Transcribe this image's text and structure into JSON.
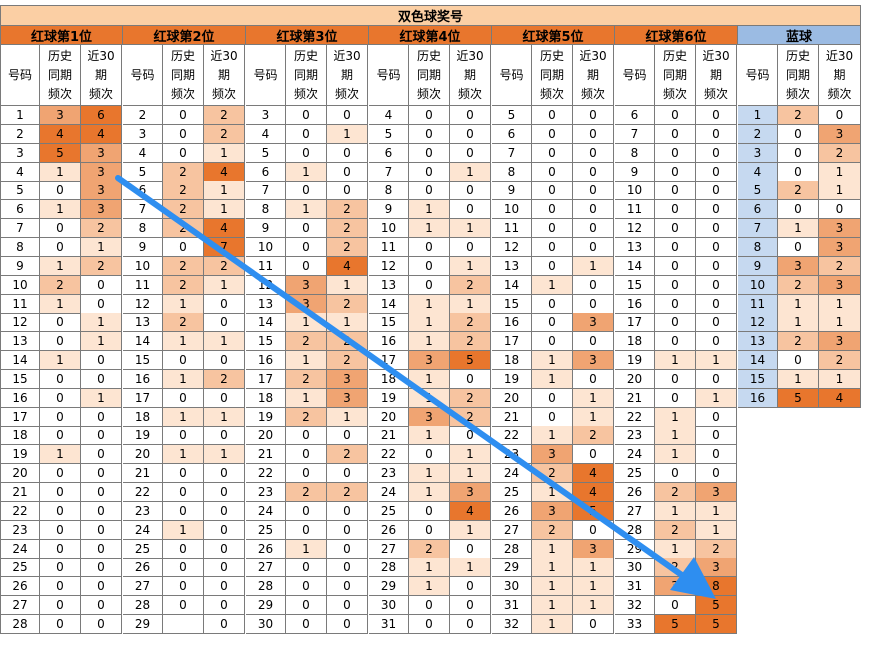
{
  "title": "双色球奖号",
  "groups": [
    {
      "label": "红球第1位",
      "blue": false
    },
    {
      "label": "红球第2位",
      "blue": false
    },
    {
      "label": "红球第3位",
      "blue": false
    },
    {
      "label": "红球第4位",
      "blue": false
    },
    {
      "label": "红球第5位",
      "blue": false
    },
    {
      "label": "红球第6位",
      "blue": false
    },
    {
      "label": "蓝球",
      "blue": true
    }
  ],
  "subheaders": [
    "号码",
    "历史\n同期\n频次",
    "近30\n期\n频次"
  ],
  "colors": {
    "title_bg": "#fbcfa4",
    "group_bg": "#e8762d",
    "blue_group_bg": "#9bbbe3",
    "blue_num_bg": "#c6d9f0",
    "heat_1": "#fde5d2",
    "heat_2": "#f7c4a0",
    "heat_3": "#f0a472",
    "heat_4": "#e8762d",
    "arrow": "#2e8ef0",
    "grid_line": "#7a7a7a"
  },
  "tables": [
    {
      "rows": [
        [
          1,
          3,
          6
        ],
        [
          2,
          4,
          4
        ],
        [
          3,
          5,
          3
        ],
        [
          4,
          1,
          3
        ],
        [
          5,
          0,
          3
        ],
        [
          6,
          1,
          3
        ],
        [
          7,
          0,
          2
        ],
        [
          8,
          0,
          1
        ],
        [
          9,
          1,
          2
        ],
        [
          10,
          2,
          0
        ],
        [
          11,
          1,
          0
        ],
        [
          12,
          0,
          1
        ],
        [
          13,
          0,
          1
        ],
        [
          14,
          1,
          0
        ],
        [
          15,
          0,
          0
        ],
        [
          16,
          0,
          1
        ],
        [
          17,
          0,
          0
        ],
        [
          18,
          0,
          0
        ],
        [
          19,
          1,
          0
        ],
        [
          20,
          0,
          0
        ],
        [
          21,
          0,
          0
        ],
        [
          22,
          0,
          0
        ],
        [
          23,
          0,
          0
        ],
        [
          24,
          0,
          0
        ],
        [
          25,
          0,
          0
        ],
        [
          26,
          0,
          0
        ],
        [
          27,
          0,
          0
        ],
        [
          28,
          0,
          0
        ]
      ]
    },
    {
      "rows": [
        [
          2,
          0,
          2
        ],
        [
          3,
          0,
          2
        ],
        [
          4,
          0,
          1
        ],
        [
          5,
          2,
          4
        ],
        [
          6,
          2,
          1
        ],
        [
          7,
          2,
          1
        ],
        [
          8,
          2,
          4
        ],
        [
          9,
          0,
          7
        ],
        [
          10,
          2,
          2
        ],
        [
          11,
          2,
          1
        ],
        [
          12,
          1,
          0
        ],
        [
          13,
          2,
          0
        ],
        [
          14,
          1,
          1
        ],
        [
          15,
          0,
          0
        ],
        [
          16,
          1,
          2
        ],
        [
          17,
          0,
          0
        ],
        [
          18,
          1,
          1
        ],
        [
          19,
          0,
          0
        ],
        [
          20,
          1,
          1
        ],
        [
          21,
          0,
          0
        ],
        [
          22,
          0,
          0
        ],
        [
          23,
          0,
          0
        ],
        [
          24,
          1,
          0
        ],
        [
          25,
          0,
          0
        ],
        [
          26,
          0,
          0
        ],
        [
          27,
          0,
          0
        ],
        [
          28,
          0,
          0
        ],
        [
          29,
          "",
          0
        ]
      ]
    },
    {
      "rows": [
        [
          3,
          0,
          0
        ],
        [
          4,
          0,
          1
        ],
        [
          5,
          0,
          0
        ],
        [
          6,
          1,
          0
        ],
        [
          7,
          0,
          0
        ],
        [
          8,
          1,
          2
        ],
        [
          9,
          0,
          2
        ],
        [
          10,
          0,
          2
        ],
        [
          11,
          0,
          4
        ],
        [
          12,
          3,
          1
        ],
        [
          13,
          3,
          2
        ],
        [
          14,
          1,
          1
        ],
        [
          15,
          2,
          2
        ],
        [
          16,
          1,
          2
        ],
        [
          17,
          2,
          3
        ],
        [
          18,
          1,
          3
        ],
        [
          19,
          2,
          1
        ],
        [
          20,
          0,
          0
        ],
        [
          21,
          0,
          2
        ],
        [
          22,
          0,
          0
        ],
        [
          23,
          2,
          2
        ],
        [
          24,
          0,
          0
        ],
        [
          25,
          0,
          0
        ],
        [
          26,
          1,
          0
        ],
        [
          27,
          0,
          0
        ],
        [
          28,
          0,
          0
        ],
        [
          29,
          0,
          0
        ],
        [
          30,
          0,
          0
        ]
      ]
    },
    {
      "rows": [
        [
          4,
          0,
          0
        ],
        [
          5,
          0,
          0
        ],
        [
          6,
          0,
          0
        ],
        [
          7,
          0,
          1
        ],
        [
          8,
          0,
          0
        ],
        [
          9,
          1,
          0
        ],
        [
          10,
          1,
          1
        ],
        [
          11,
          0,
          0
        ],
        [
          12,
          0,
          1
        ],
        [
          13,
          0,
          2
        ],
        [
          14,
          1,
          1
        ],
        [
          15,
          1,
          2
        ],
        [
          16,
          1,
          2
        ],
        [
          17,
          3,
          5
        ],
        [
          18,
          1,
          0
        ],
        [
          19,
          1,
          2
        ],
        [
          20,
          3,
          2
        ],
        [
          21,
          1,
          0
        ],
        [
          22,
          0,
          1
        ],
        [
          23,
          1,
          1
        ],
        [
          24,
          1,
          3
        ],
        [
          25,
          0,
          4
        ],
        [
          26,
          0,
          1
        ],
        [
          27,
          2,
          0
        ],
        [
          28,
          1,
          1
        ],
        [
          29,
          1,
          0
        ],
        [
          30,
          0,
          0
        ],
        [
          31,
          0,
          0
        ]
      ]
    },
    {
      "rows": [
        [
          5,
          0,
          0
        ],
        [
          6,
          0,
          0
        ],
        [
          7,
          0,
          0
        ],
        [
          8,
          0,
          0
        ],
        [
          9,
          0,
          0
        ],
        [
          10,
          0,
          0
        ],
        [
          11,
          0,
          0
        ],
        [
          12,
          0,
          0
        ],
        [
          13,
          0,
          1
        ],
        [
          14,
          1,
          0
        ],
        [
          15,
          0,
          0
        ],
        [
          16,
          0,
          3
        ],
        [
          17,
          0,
          0
        ],
        [
          18,
          1,
          3
        ],
        [
          19,
          1,
          0
        ],
        [
          20,
          0,
          1
        ],
        [
          21,
          0,
          1
        ],
        [
          22,
          1,
          2
        ],
        [
          23,
          3,
          0
        ],
        [
          24,
          2,
          4
        ],
        [
          25,
          1,
          4
        ],
        [
          26,
          3,
          5
        ],
        [
          27,
          2,
          0
        ],
        [
          28,
          1,
          3
        ],
        [
          29,
          1,
          1
        ],
        [
          30,
          1,
          1
        ],
        [
          31,
          1,
          1
        ],
        [
          32,
          1,
          0
        ]
      ]
    },
    {
      "rows": [
        [
          6,
          0,
          0
        ],
        [
          7,
          0,
          0
        ],
        [
          8,
          0,
          0
        ],
        [
          9,
          0,
          0
        ],
        [
          10,
          0,
          0
        ],
        [
          11,
          0,
          0
        ],
        [
          12,
          0,
          0
        ],
        [
          13,
          0,
          0
        ],
        [
          14,
          0,
          0
        ],
        [
          15,
          0,
          0
        ],
        [
          16,
          0,
          0
        ],
        [
          17,
          0,
          0
        ],
        [
          18,
          0,
          0
        ],
        [
          19,
          1,
          1
        ],
        [
          20,
          0,
          0
        ],
        [
          21,
          0,
          1
        ],
        [
          22,
          1,
          0
        ],
        [
          23,
          1,
          0
        ],
        [
          24,
          1,
          0
        ],
        [
          25,
          0,
          0
        ],
        [
          26,
          2,
          3
        ],
        [
          27,
          1,
          1
        ],
        [
          28,
          2,
          1
        ],
        [
          29,
          1,
          2
        ],
        [
          30,
          2,
          3
        ],
        [
          31,
          3,
          8
        ],
        [
          32,
          0,
          5
        ],
        [
          33,
          5,
          5
        ]
      ]
    },
    {
      "rows": [
        [
          1,
          2,
          0
        ],
        [
          2,
          0,
          3
        ],
        [
          3,
          0,
          2
        ],
        [
          4,
          0,
          1
        ],
        [
          5,
          2,
          1
        ],
        [
          6,
          0,
          0
        ],
        [
          7,
          1,
          3
        ],
        [
          8,
          0,
          3
        ],
        [
          9,
          3,
          2
        ],
        [
          10,
          2,
          3
        ],
        [
          11,
          1,
          1
        ],
        [
          12,
          1,
          1
        ],
        [
          13,
          2,
          3
        ],
        [
          14,
          0,
          2
        ],
        [
          15,
          1,
          1
        ],
        [
          16,
          5,
          4
        ]
      ]
    }
  ]
}
